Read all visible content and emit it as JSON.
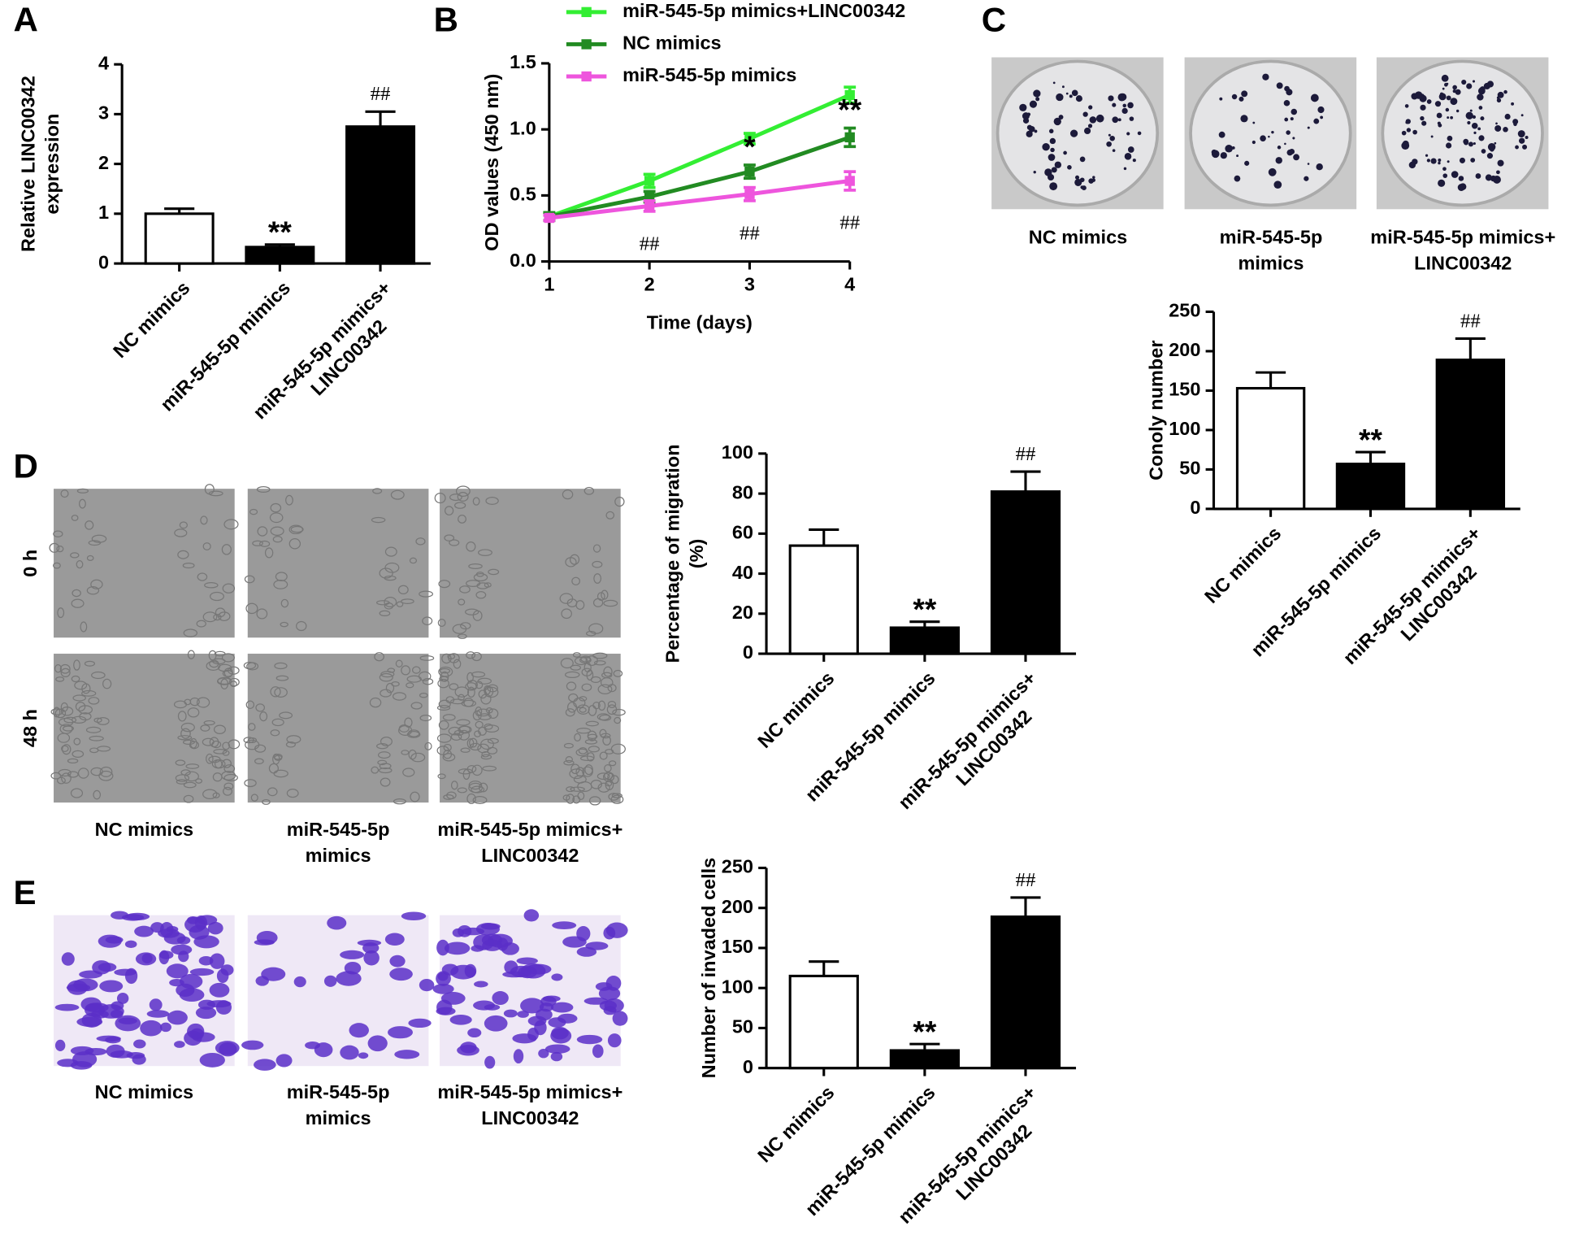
{
  "panel_labels": [
    "A",
    "B",
    "C",
    "D",
    "E"
  ],
  "images": {
    "C": {
      "captions": [
        [
          "NC mimics"
        ],
        [
          "miR-545-5p",
          "mimics"
        ],
        [
          "miR-545-5p mimics+",
          "LINC00342"
        ]
      ]
    },
    "D": {
      "rows": [
        "0 h",
        "48 h"
      ],
      "captions": [
        [
          "NC mimics"
        ],
        [
          "miR-545-5p",
          "mimics"
        ],
        [
          "miR-545-5p mimics+",
          "LINC00342"
        ]
      ]
    },
    "E": {
      "captions": [
        [
          "NC mimics"
        ],
        [
          "miR-545-5p",
          "mimics"
        ],
        [
          "miR-545-5p mimics+",
          "LINC00342"
        ]
      ]
    }
  },
  "chart_data": [
    {
      "type": "bar",
      "ylabel": [
        "Relative LINC00342",
        "expression"
      ],
      "categories": [
        [
          "NC mimics"
        ],
        [
          "miR-545-5p mimics"
        ],
        [
          "miR-545-5p mimics+",
          "LINC00342"
        ]
      ],
      "values": [
        1.0,
        0.33,
        2.75
      ],
      "errors": [
        0.1,
        0.05,
        0.3
      ],
      "value_annotations": [
        null,
        "**",
        "##"
      ],
      "colors": [
        "#ffffff",
        "#000000",
        "#000000"
      ],
      "ylim": [
        0,
        4
      ],
      "yticks": [
        0,
        1,
        2,
        3,
        4
      ]
    },
    {
      "type": "line",
      "xlabel": "Time (days)",
      "ylabel": "OD values (450 nm)",
      "x": [
        1,
        2,
        3,
        4
      ],
      "xlim": [
        1,
        4
      ],
      "xticks": [
        1,
        2,
        3,
        4
      ],
      "ylim": [
        0,
        1.5
      ],
      "yticks": [
        {
          "value": 0,
          "label": "0.0"
        },
        0.5,
        {
          "value": 1,
          "label": "1.0"
        },
        1.5
      ],
      "series": [
        {
          "name": "miR-545-5p mimics+LINC00342",
          "color": "#33ee33",
          "values": [
            0.34,
            0.61,
            0.93,
            1.26
          ],
          "errors": [
            0.03,
            0.05,
            0.04,
            0.06
          ],
          "annotations": [
            null,
            null,
            null,
            null
          ]
        },
        {
          "name": "NC mimics",
          "color": "#228b22",
          "values": [
            0.34,
            0.49,
            0.68,
            0.94
          ],
          "errors": [
            0.03,
            0.04,
            0.05,
            0.07
          ],
          "annotations": [
            null,
            null,
            "*",
            "**"
          ]
        },
        {
          "name": "miR-545-5p mimics",
          "color": "#ee55dd",
          "values": [
            0.33,
            0.42,
            0.51,
            0.61
          ],
          "errors": [
            0.02,
            0.04,
            0.05,
            0.07
          ],
          "annotations": [
            null,
            "##",
            "##",
            "##"
          ]
        }
      ]
    },
    {
      "type": "bar",
      "ylabel": [
        "Conoly number"
      ],
      "categories": [
        [
          "NC mimics"
        ],
        [
          "miR-545-5p mimics"
        ],
        [
          "miR-545-5p mimics+",
          "LINC00342"
        ]
      ],
      "values": [
        153,
        57,
        189
      ],
      "errors": [
        20,
        15,
        27
      ],
      "value_annotations": [
        null,
        "**",
        "##"
      ],
      "colors": [
        "#ffffff",
        "#000000",
        "#000000"
      ],
      "ylim": [
        0,
        250
      ],
      "yticks": [
        0,
        50,
        100,
        150,
        200,
        250
      ]
    },
    {
      "type": "bar",
      "ylabel": [
        "Percentage of migration",
        "(%)"
      ],
      "categories": [
        [
          "NC mimics"
        ],
        [
          "miR-545-5p mimics"
        ],
        [
          "miR-545-5p mimics+",
          "LINC00342"
        ]
      ],
      "values": [
        54,
        13,
        81
      ],
      "errors": [
        8,
        3,
        10
      ],
      "value_annotations": [
        null,
        "**",
        "##"
      ],
      "colors": [
        "#ffffff",
        "#000000",
        "#000000"
      ],
      "ylim": [
        0,
        100
      ],
      "yticks": [
        0,
        20,
        40,
        60,
        80,
        100
      ]
    },
    {
      "type": "bar",
      "ylabel": [
        "Number of invaded cells"
      ],
      "categories": [
        [
          "NC mimics"
        ],
        [
          "miR-545-5p mimics"
        ],
        [
          "miR-545-5p mimics+",
          "LINC00342"
        ]
      ],
      "values": [
        115,
        22,
        189
      ],
      "errors": [
        18,
        8,
        24
      ],
      "value_annotations": [
        null,
        "**",
        "##"
      ],
      "colors": [
        "#ffffff",
        "#000000",
        "#000000"
      ],
      "ylim": [
        0,
        250
      ],
      "yticks": [
        0,
        50,
        100,
        150,
        200,
        250
      ]
    }
  ]
}
